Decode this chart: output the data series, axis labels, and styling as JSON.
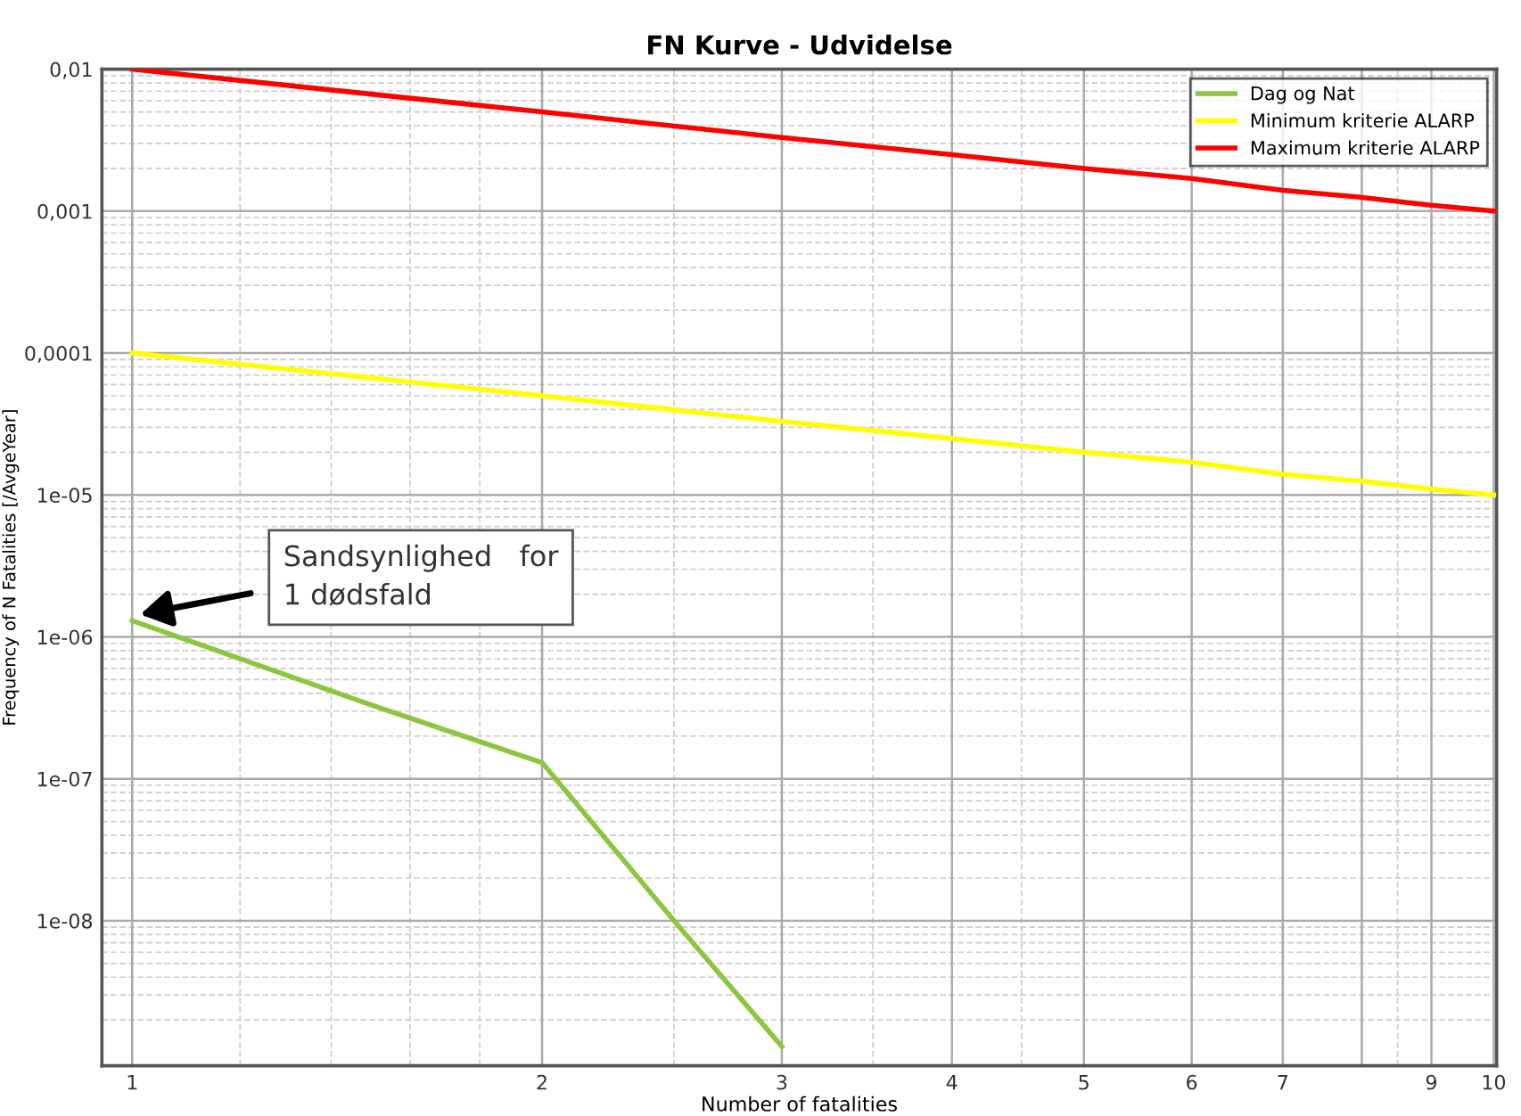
{
  "chart_data": {
    "type": "line",
    "title": "FN Kurve - Udvidelse",
    "xlabel": "Number of fatalities",
    "ylabel": "Frequency of N Fatalities [/AvgeYear]",
    "log": "xy",
    "xlim": [
      0.95,
      10.05
    ],
    "ylim": [
      9.5e-10,
      0.01
    ],
    "xticks": [
      1,
      2,
      3,
      4,
      5,
      6,
      7,
      {
        "value": 8,
        "label": null
      },
      9,
      10
    ],
    "yticks": [
      {
        "value": 0.01,
        "label": "0,01"
      },
      {
        "value": 0.001,
        "label": "0,001"
      },
      {
        "value": 0.0001,
        "label": "0,0001"
      },
      {
        "value": 1e-05,
        "label": "1e-05"
      },
      {
        "value": 1e-06,
        "label": "1e-06"
      },
      {
        "value": 1e-07,
        "label": "1e-07"
      },
      {
        "value": 1e-08,
        "label": "1e-08"
      }
    ],
    "grid": true,
    "legend": "top right",
    "marker": "none",
    "line_style": "solid",
    "series": [
      {
        "name": "Dag og Nat",
        "color": "#8cc63f",
        "x": [
          1,
          1.5,
          2,
          2.5,
          3
        ],
        "values": [
          1.3e-06,
          3.3e-07,
          1.3e-07,
          1e-08,
          1.3e-09
        ]
      },
      {
        "name": "Minimum kriterie ALARP",
        "color": "#ffff00",
        "x": [
          1,
          2,
          3,
          4,
          5,
          6,
          7,
          8,
          9,
          10
        ],
        "values": [
          0.0001,
          5e-05,
          3.3e-05,
          2.5e-05,
          2e-05,
          1.7e-05,
          1.4e-05,
          1.25e-05,
          1.1e-05,
          1e-05
        ]
      },
      {
        "name": "Maximum kriterie ALARP",
        "color": "#ff0000",
        "x": [
          1,
          2,
          3,
          4,
          5,
          6,
          7,
          8,
          9,
          10
        ],
        "values": [
          0.01,
          0.005,
          0.0033,
          0.0025,
          0.002,
          0.0017,
          0.0014,
          0.00125,
          0.0011,
          0.001
        ]
      }
    ],
    "annotations": [
      "Sandsynlighed   for\n1 dødsfald"
    ]
  }
}
